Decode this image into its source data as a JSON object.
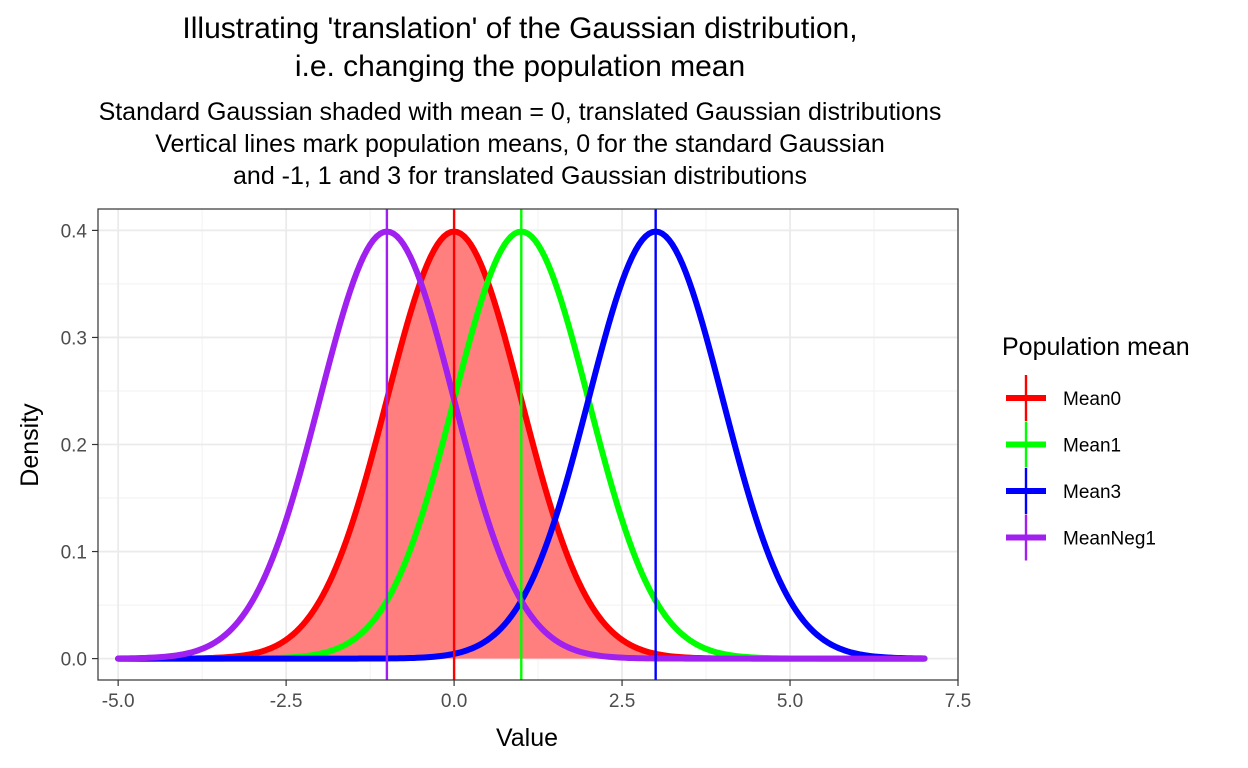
{
  "chart_data": {
    "type": "line",
    "title_lines": [
      "Illustrating 'translation' of the Gaussian distribution,",
      "i.e. changing the population mean"
    ],
    "subtitle_lines": [
      "Standard Gaussian shaded with mean = 0, translated Gaussian distributions",
      "Vertical lines mark population means, 0 for the standard Gaussian",
      "and -1, 1 and 3 for translated Gaussian distributions"
    ],
    "xlabel": "Value",
    "ylabel": "Density",
    "xlim": [
      -5.3,
      7.5
    ],
    "ylim": [
      -0.02,
      0.42
    ],
    "x_range": [
      -5,
      7
    ],
    "sd": 1,
    "xticks": [
      -5.0,
      -2.5,
      0.0,
      2.5,
      5.0,
      7.5
    ],
    "xtick_labels": [
      "-5.0",
      "-2.5",
      "0.0",
      "2.5",
      "5.0",
      "7.5"
    ],
    "yticks": [
      0.0,
      0.1,
      0.2,
      0.3,
      0.4
    ],
    "ytick_labels": [
      "0.0",
      "0.1",
      "0.2",
      "0.3",
      "0.4"
    ],
    "shaded_series": "Mean0",
    "shade_color": "#ff7f7f",
    "grid": true,
    "legend_title": "Population mean",
    "legend_position": "right",
    "series": [
      {
        "name": "Mean0",
        "mean": 0,
        "color": "#ff0000"
      },
      {
        "name": "Mean1",
        "mean": 1,
        "color": "#00ff00"
      },
      {
        "name": "Mean3",
        "mean": 3,
        "color": "#0000ff"
      },
      {
        "name": "MeanNeg1",
        "mean": -1,
        "color": "#a020f0"
      }
    ]
  }
}
